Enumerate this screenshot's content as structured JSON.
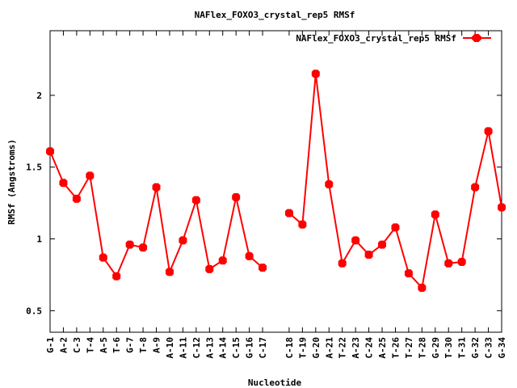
{
  "chart_data": {
    "type": "line",
    "title": "NAFlex_FOXO3_crystal_rep5 RMSf",
    "xlabel": "Nucleotide",
    "ylabel": "RMSf (Angstroms)",
    "ylim": [
      0.35,
      2.45
    ],
    "yticks": [
      0.5,
      1,
      1.5,
      2
    ],
    "ytick_labels": [
      "0.5",
      "1",
      "1.5",
      "2"
    ],
    "legend_position": "top-right",
    "series": [
      {
        "name": "NAFlex_FOXO3_crystal_rep5 RMSf",
        "color": "#ff0000",
        "segments": [
          {
            "categories": [
              "G-1",
              "A-2",
              "C-3",
              "T-4",
              "A-5",
              "T-6",
              "G-7",
              "T-8",
              "A-9",
              "A-10",
              "A-11",
              "C-12",
              "A-13",
              "A-14",
              "C-15",
              "G-16",
              "C-17"
            ],
            "values": [
              1.61,
              1.39,
              1.28,
              1.44,
              0.87,
              0.74,
              0.96,
              0.94,
              1.36,
              0.77,
              0.99,
              1.27,
              0.79,
              0.85,
              1.29,
              0.88,
              0.8
            ]
          },
          {
            "categories": [
              "C-18",
              "T-19",
              "G-20",
              "A-21",
              "T-22",
              "A-23",
              "C-24",
              "A-25",
              "T-26",
              "T-27",
              "T-28",
              "G-29",
              "T-30",
              "T-31",
              "G-32",
              "C-33",
              "G-34"
            ],
            "values": [
              1.18,
              1.1,
              2.15,
              1.38,
              0.83,
              0.99,
              0.89,
              0.96,
              1.08,
              0.76,
              0.66,
              1.17,
              0.83,
              0.84,
              1.36,
              1.75,
              1.22
            ]
          }
        ]
      }
    ]
  }
}
